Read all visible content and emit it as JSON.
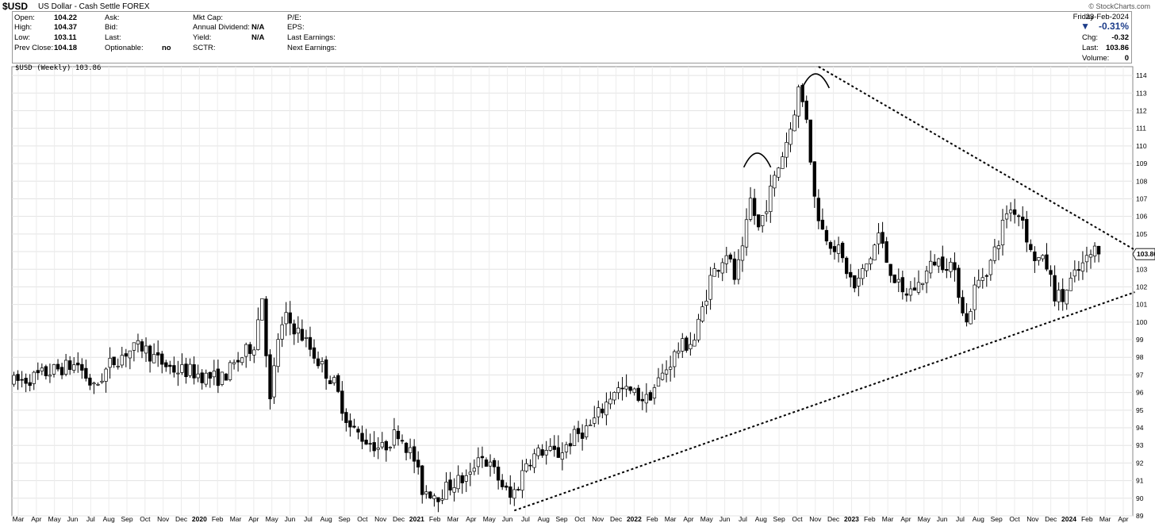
{
  "header": {
    "symbol": "$USD",
    "name": "US Dollar - Cash Settle",
    "exchange": "FOREX",
    "source": "© StockCharts.com",
    "quote_left": [
      {
        "label": "Open:",
        "value": "104.22"
      },
      {
        "label": "High:",
        "value": "104.37"
      },
      {
        "label": "Low:",
        "value": "103.11"
      },
      {
        "label": "Prev Close:",
        "value": "104.18"
      }
    ],
    "quote_mid1": [
      {
        "label": "Ask:",
        "value": ""
      },
      {
        "label": "Bid:",
        "value": ""
      },
      {
        "label": "Last:",
        "value": ""
      },
      {
        "label": "Optionable:",
        "value": "no"
      }
    ],
    "quote_mid2": [
      {
        "label": "Mkt Cap:",
        "value": ""
      },
      {
        "label": "Annual Dividend:",
        "value": "N/A"
      },
      {
        "label": "Yield:",
        "value": "N/A"
      },
      {
        "label": "SCTR:",
        "value": ""
      }
    ],
    "quote_mid3": [
      {
        "label": "P/E:",
        "value": ""
      },
      {
        "label": "EPS:",
        "value": ""
      },
      {
        "label": "Last Earnings:",
        "value": ""
      },
      {
        "label": "Next Earnings:",
        "value": ""
      }
    ],
    "day": "Friday",
    "date": "23-Feb-2024",
    "change_pct": "-0.31%",
    "quote_right": [
      {
        "label": "Chg:",
        "value": "-0.32"
      },
      {
        "label": "Last:",
        "value": "103.86"
      },
      {
        "label": "Volume:",
        "value": "0"
      }
    ],
    "legend": "$USD (Weekly) 103.86"
  },
  "chart_data": {
    "type": "candlestick",
    "title": "$USD US Dollar - Cash Settle FOREX",
    "series_label": "$USD (Weekly) 103.86",
    "last_value": 103.86,
    "ylim": [
      89,
      114.5
    ],
    "yticks": [
      89,
      90,
      91,
      92,
      93,
      94,
      95,
      96,
      97,
      98,
      99,
      100,
      101,
      102,
      103,
      104,
      105,
      106,
      107,
      108,
      109,
      110,
      111,
      112,
      113,
      114
    ],
    "x_labels": [
      "Mar",
      "Apr",
      "May",
      "Jun",
      "Jul",
      "Aug",
      "Sep",
      "Oct",
      "Nov",
      "Dec",
      "2020",
      "Feb",
      "Mar",
      "Apr",
      "May",
      "Jun",
      "Jul",
      "Aug",
      "Sep",
      "Oct",
      "Nov",
      "Dec",
      "2021",
      "Feb",
      "Mar",
      "Apr",
      "May",
      "Jun",
      "Jul",
      "Aug",
      "Sep",
      "Oct",
      "Nov",
      "Dec",
      "2022",
      "Feb",
      "Mar",
      "Apr",
      "May",
      "Jun",
      "Jul",
      "Aug",
      "Sep",
      "Oct",
      "Nov",
      "Dec",
      "2023",
      "Feb",
      "Mar",
      "Apr",
      "May",
      "Jun",
      "Jul",
      "Aug",
      "Sep",
      "Oct",
      "Nov",
      "Dec",
      "2024",
      "Feb",
      "Mar",
      "Apr"
    ],
    "bold_labels": [
      "2020",
      "2021",
      "2022",
      "2023",
      "2024"
    ],
    "weekly_close_path": [
      [
        0,
        96.6
      ],
      [
        4,
        96.8
      ],
      [
        8,
        97.1
      ],
      [
        12,
        97.4
      ],
      [
        16,
        97.6
      ],
      [
        20,
        96.2
      ],
      [
        24,
        97.6
      ],
      [
        28,
        98.3
      ],
      [
        32,
        98.6
      ],
      [
        36,
        97.8
      ],
      [
        40,
        97.3
      ],
      [
        44,
        97.2
      ],
      [
        48,
        96.9
      ],
      [
        52,
        96.8
      ],
      [
        56,
        97.8
      ],
      [
        60,
        98.8
      ],
      [
        62,
        101.5
      ],
      [
        64,
        95.4
      ],
      [
        66,
        99.1
      ],
      [
        68,
        100.2
      ],
      [
        72,
        99.2
      ],
      [
        76,
        97.8
      ],
      [
        80,
        96.5
      ],
      [
        84,
        94.0
      ],
      [
        88,
        93.3
      ],
      [
        92,
        92.8
      ],
      [
        96,
        93.8
      ],
      [
        100,
        92.2
      ],
      [
        102,
        90.5
      ],
      [
        106,
        90.2
      ],
      [
        110,
        90.9
      ],
      [
        114,
        91.2
      ],
      [
        116,
        92.6
      ],
      [
        120,
        91.5
      ],
      [
        124,
        90.0
      ],
      [
        126,
        90.8
      ],
      [
        128,
        92.1
      ],
      [
        132,
        92.7
      ],
      [
        136,
        92.5
      ],
      [
        140,
        93.5
      ],
      [
        144,
        94.1
      ],
      [
        148,
        95.4
      ],
      [
        150,
        96.2
      ],
      [
        154,
        96.0
      ],
      [
        158,
        95.6
      ],
      [
        162,
        97.0
      ],
      [
        166,
        98.5
      ],
      [
        170,
        99.0
      ],
      [
        174,
        102.5
      ],
      [
        178,
        104.0
      ],
      [
        180,
        102.5
      ],
      [
        182,
        103.9
      ],
      [
        184,
        106.9
      ],
      [
        186,
        105.3
      ],
      [
        190,
        108.1
      ],
      [
        194,
        111.0
      ],
      [
        196,
        113.2
      ],
      [
        198,
        111.7
      ],
      [
        200,
        107.0
      ],
      [
        202,
        105.2
      ],
      [
        206,
        104.0
      ],
      [
        210,
        101.9
      ],
      [
        214,
        103.7
      ],
      [
        216,
        105.0
      ],
      [
        218,
        103.5
      ],
      [
        222,
        101.5
      ],
      [
        226,
        102.1
      ],
      [
        230,
        103.5
      ],
      [
        234,
        103.3
      ],
      [
        236,
        101.8
      ],
      [
        238,
        99.9
      ],
      [
        240,
        101.9
      ],
      [
        244,
        103.4
      ],
      [
        246,
        104.7
      ],
      [
        248,
        106.3
      ],
      [
        250,
        106.4
      ],
      [
        252,
        105.9
      ],
      [
        254,
        103.9
      ],
      [
        258,
        103.2
      ],
      [
        260,
        101.6
      ],
      [
        262,
        101.3
      ],
      [
        264,
        102.3
      ],
      [
        268,
        103.5
      ],
      [
        270,
        104.1
      ],
      [
        271,
        103.86
      ]
    ],
    "trendlines": [
      {
        "name": "lower",
        "from": [
          125,
          89.3
        ],
        "to": [
          280,
          101.7
        ]
      },
      {
        "name": "upper",
        "from": [
          201,
          114.5
        ],
        "to": [
          280,
          104.1
        ]
      }
    ],
    "grid": true
  }
}
